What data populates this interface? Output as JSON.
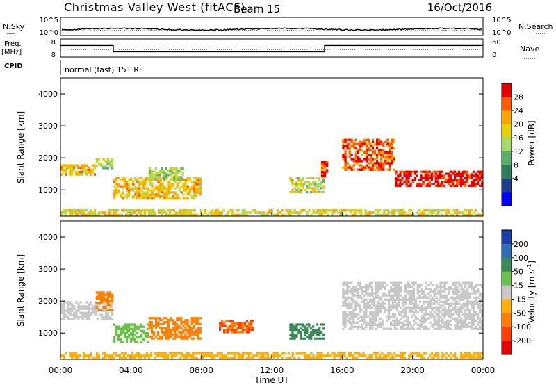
{
  "header": {
    "station": "Christmas Valley West (fitACF)",
    "beam": "Beam 15",
    "date": "16/Oct/2016"
  },
  "noise_panel": {
    "left_label": "N.Sky",
    "right_label": "N.Search",
    "left_ticks": [
      "10^5",
      "10^0"
    ],
    "right_ticks": [
      "10^5",
      "10^0"
    ]
  },
  "freq_panel": {
    "left_label_1": "Freq.",
    "left_label_2": "[MHz]",
    "right_label": "Nave",
    "left_ticks": [
      "18",
      "8"
    ],
    "right_ticks": [
      "60",
      "0"
    ]
  },
  "cpid": {
    "label": "CPID",
    "text": "normal (fast) 151 RF"
  },
  "axes": {
    "ylabel": "Slant Range [km]",
    "xlabel": "Time UT",
    "y_ticks": [
      "4000",
      "3000",
      "2000",
      "1000"
    ],
    "x_ticks": [
      "00:00",
      "04:00",
      "08:00",
      "12:00",
      "16:00",
      "20:00",
      "00:00"
    ]
  },
  "power_colorbar": {
    "label": "Power [dB]",
    "ticks": [
      "28",
      "24",
      "20",
      "16",
      "12",
      "8",
      "4"
    ],
    "colors": [
      "#e60000",
      "#ff5a00",
      "#ffa500",
      "#e6d200",
      "#a6d96a",
      "#5cae6e",
      "#2f7d5a",
      "#1e3c8c",
      "#0000ff"
    ]
  },
  "velocity_colorbar": {
    "label": "Velocity [m s",
    "label_sup": "-1",
    "label_end": "]",
    "ticks": [
      "200",
      "100",
      "50",
      "15",
      "-15",
      "-50",
      "-100",
      "-200"
    ],
    "colors": [
      "#1c3da8",
      "#2e6fb8",
      "#3a8a5a",
      "#6cc24a",
      "#c8c8c8",
      "#ffb000",
      "#ff8000",
      "#ff4000",
      "#e60000"
    ]
  },
  "chart_data": {
    "type": "heatmap",
    "x_range": [
      "00:00",
      "24:00"
    ],
    "y_range_km": [
      180,
      4500
    ],
    "frequency_trace": [
      {
        "from": "00:00",
        "to": "03:00",
        "mhz": 15
      },
      {
        "from": "03:00",
        "to": "15:00",
        "mhz": 10
      },
      {
        "from": "15:00",
        "to": "24:00",
        "mhz": 15
      }
    ],
    "power_echo_regions": [
      {
        "t0": 0.0,
        "t1": 2.0,
        "r0": 1450,
        "r1": 1800,
        "power_db": 18
      },
      {
        "t0": 2.0,
        "t1": 3.0,
        "r0": 1650,
        "r1": 2000,
        "power_db": 12
      },
      {
        "t0": 3.0,
        "t1": 8.0,
        "r0": 700,
        "r1": 1400,
        "power_db": 18
      },
      {
        "t0": 5.0,
        "t1": 7.0,
        "r0": 1300,
        "r1": 1700,
        "power_db": 12
      },
      {
        "t0": 13.0,
        "t1": 15.0,
        "r0": 900,
        "r1": 1400,
        "power_db": 14
      },
      {
        "t0": 14.8,
        "t1": 15.2,
        "r0": 1400,
        "r1": 1900,
        "power_db": 26
      },
      {
        "t0": 16.0,
        "t1": 19.0,
        "r0": 1600,
        "r1": 2600,
        "power_db": 24
      },
      {
        "t0": 19.0,
        "t1": 24.0,
        "r0": 1100,
        "r1": 1600,
        "power_db": 28
      },
      {
        "t0": 0.0,
        "t1": 24.0,
        "r0": 180,
        "r1": 400,
        "power_db": 16
      }
    ],
    "velocity_echo_regions": [
      {
        "t0": 0.0,
        "t1": 3.0,
        "r0": 1400,
        "r1": 2000,
        "velocity": 0
      },
      {
        "t0": 2.0,
        "t1": 3.0,
        "r0": 1700,
        "r1": 2300,
        "velocity": -70
      },
      {
        "t0": 3.0,
        "t1": 5.0,
        "r0": 700,
        "r1": 1300,
        "velocity": 30
      },
      {
        "t0": 5.0,
        "t1": 8.0,
        "r0": 800,
        "r1": 1500,
        "velocity": -60
      },
      {
        "t0": 9.0,
        "t1": 11.0,
        "r0": 1000,
        "r1": 1400,
        "velocity": -100
      },
      {
        "t0": 13.0,
        "t1": 15.0,
        "r0": 800,
        "r1": 1300,
        "velocity": 80
      },
      {
        "t0": 16.0,
        "t1": 24.0,
        "r0": 1100,
        "r1": 2600,
        "velocity": 0
      },
      {
        "t0": 0.0,
        "t1": 24.0,
        "r0": 180,
        "r1": 400,
        "velocity": -40
      }
    ]
  }
}
